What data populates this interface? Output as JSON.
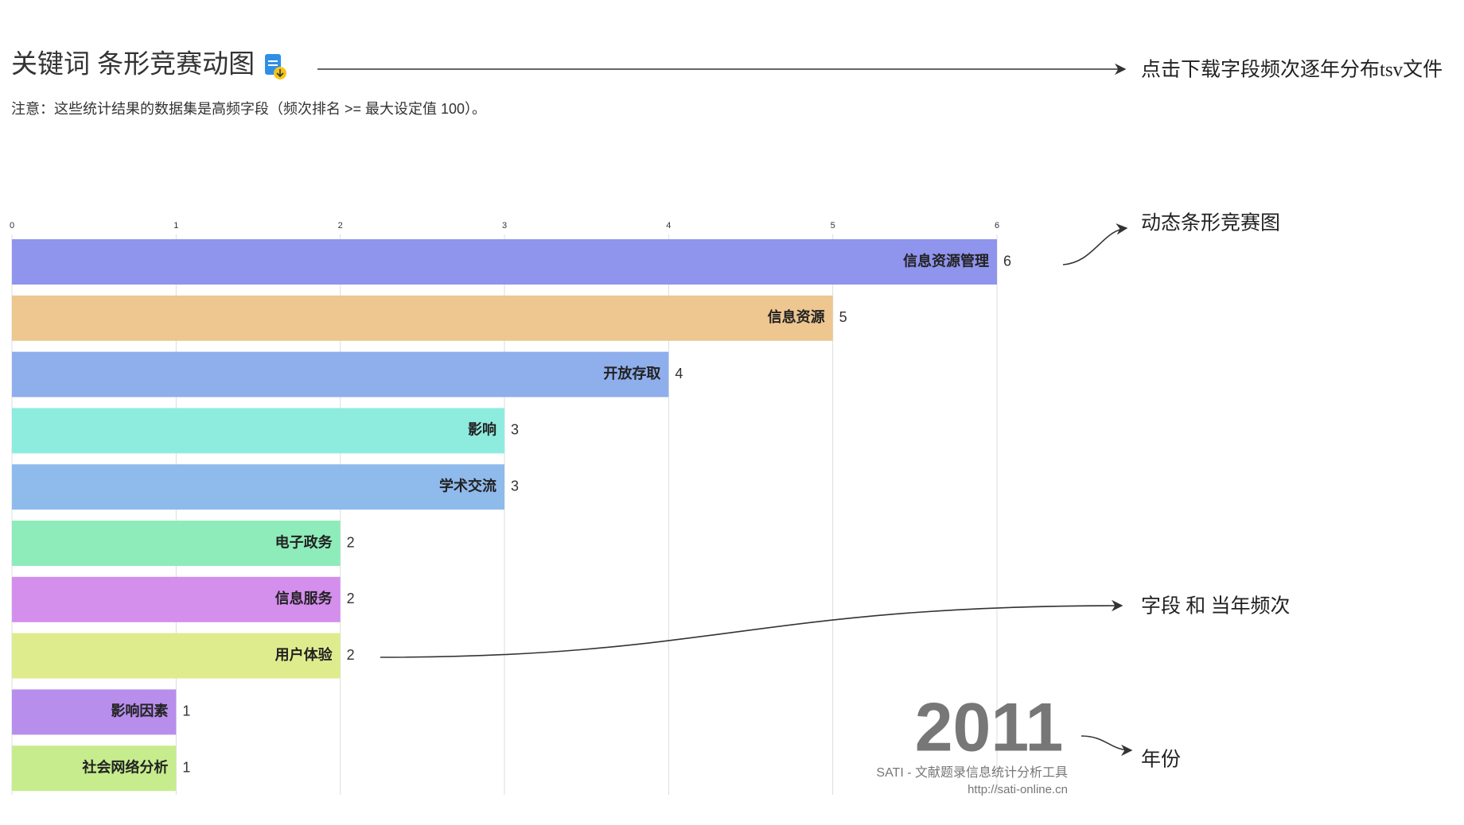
{
  "chart_data": {
    "type": "bar",
    "orientation": "horizontal",
    "title": "关键词 条形竞赛动图",
    "subtitle": "注意：这些统计结果的数据集是高频字段（频次排名 >= 最大设定值 100）。",
    "categories": [
      "信息资源管理",
      "信息资源",
      "开放存取",
      "影响",
      "学术交流",
      "电子政务",
      "信息服务",
      "用户体验",
      "影响因素",
      "社会网络分析"
    ],
    "values": [
      6,
      5,
      4,
      3,
      3,
      2,
      2,
      2,
      1,
      1
    ],
    "colors": [
      "#8f94ec",
      "#edc690",
      "#8faeec",
      "#8eecdf",
      "#8fbaec",
      "#8eecba",
      "#d48eec",
      "#dfec8e",
      "#b78eec",
      "#c6ec8e"
    ],
    "xlim": [
      0,
      6
    ],
    "xticks": [
      0,
      1,
      2,
      3,
      4,
      5,
      6
    ],
    "grid": true,
    "year": "2011",
    "footer": [
      "SATI - 文献题录信息统计分析工具",
      "http://sati-online.cn"
    ],
    "annotations": [
      "点击下载字段频次逐年分布tsv文件",
      "动态条形竞赛图",
      "字段 和 当年频次",
      "年份"
    ]
  }
}
